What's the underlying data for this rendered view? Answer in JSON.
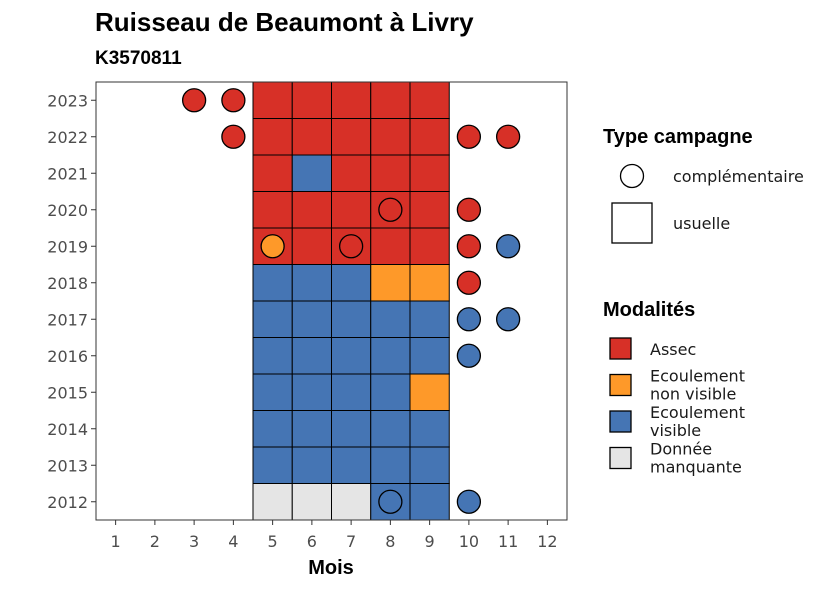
{
  "chart_data": {
    "type": "heatmap",
    "title": "Ruisseau de Beaumont à Livry",
    "subtitle": "K3570811",
    "xlabel": "Mois",
    "ylabel": "",
    "x_ticks": [
      "1",
      "2",
      "3",
      "4",
      "5",
      "6",
      "7",
      "8",
      "9",
      "10",
      "11",
      "12"
    ],
    "y_ticks": [
      "2012",
      "2013",
      "2014",
      "2015",
      "2016",
      "2017",
      "2018",
      "2019",
      "2020",
      "2021",
      "2022",
      "2023"
    ],
    "xlim": [
      0.5,
      12.5
    ],
    "ylim": [
      2011.5,
      2023.5
    ],
    "grid": false,
    "legend_placement": "right",
    "colors": {
      "Assec": "#d73027",
      "Ecoulement non visible": "#fe9929",
      "Ecoulement visible": "#4575b4",
      "Donnée manquante": "#e5e5e5"
    },
    "legend_type": {
      "title": "Type campagne",
      "items": [
        {
          "label": "complémentaire",
          "shape": "circle"
        },
        {
          "label": "usuelle",
          "shape": "square"
        }
      ]
    },
    "legend_mod": {
      "title": "Modalités",
      "items": [
        {
          "key": "Assec",
          "lines": [
            "Assec"
          ]
        },
        {
          "key": "Ecoulement non visible",
          "lines": [
            "Ecoulement",
            "non visible"
          ]
        },
        {
          "key": "Ecoulement visible",
          "lines": [
            "Ecoulement",
            "visible"
          ]
        },
        {
          "key": "Donnée manquante",
          "lines": [
            "Donnée",
            "manquante"
          ]
        }
      ]
    },
    "usuelle": [
      {
        "year": 2023,
        "months": [
          5,
          6,
          7,
          8,
          9
        ],
        "values": [
          "Assec",
          "Assec",
          "Assec",
          "Assec",
          "Assec"
        ]
      },
      {
        "year": 2022,
        "months": [
          5,
          6,
          7,
          8,
          9
        ],
        "values": [
          "Assec",
          "Assec",
          "Assec",
          "Assec",
          "Assec"
        ]
      },
      {
        "year": 2021,
        "months": [
          5,
          6,
          7,
          8,
          9
        ],
        "values": [
          "Assec",
          "Ecoulement visible",
          "Assec",
          "Assec",
          "Assec"
        ]
      },
      {
        "year": 2020,
        "months": [
          5,
          6,
          7,
          8,
          9
        ],
        "values": [
          "Assec",
          "Assec",
          "Assec",
          "Assec",
          "Assec"
        ]
      },
      {
        "year": 2019,
        "months": [
          5,
          6,
          7,
          8,
          9
        ],
        "values": [
          "Assec",
          "Assec",
          "Assec",
          "Assec",
          "Assec"
        ]
      },
      {
        "year": 2018,
        "months": [
          5,
          6,
          7,
          8,
          9
        ],
        "values": [
          "Ecoulement visible",
          "Ecoulement visible",
          "Ecoulement visible",
          "Ecoulement non visible",
          "Ecoulement non visible"
        ]
      },
      {
        "year": 2017,
        "months": [
          5,
          6,
          7,
          8,
          9
        ],
        "values": [
          "Ecoulement visible",
          "Ecoulement visible",
          "Ecoulement visible",
          "Ecoulement visible",
          "Ecoulement visible"
        ]
      },
      {
        "year": 2016,
        "months": [
          5,
          6,
          7,
          8,
          9
        ],
        "values": [
          "Ecoulement visible",
          "Ecoulement visible",
          "Ecoulement visible",
          "Ecoulement visible",
          "Ecoulement visible"
        ]
      },
      {
        "year": 2015,
        "months": [
          5,
          6,
          7,
          8,
          9
        ],
        "values": [
          "Ecoulement visible",
          "Ecoulement visible",
          "Ecoulement visible",
          "Ecoulement visible",
          "Ecoulement non visible"
        ]
      },
      {
        "year": 2014,
        "months": [
          5,
          6,
          7,
          8,
          9
        ],
        "values": [
          "Ecoulement visible",
          "Ecoulement visible",
          "Ecoulement visible",
          "Ecoulement visible",
          "Ecoulement visible"
        ]
      },
      {
        "year": 2013,
        "months": [
          5,
          6,
          7,
          8,
          9
        ],
        "values": [
          "Ecoulement visible",
          "Ecoulement visible",
          "Ecoulement visible",
          "Ecoulement visible",
          "Ecoulement visible"
        ]
      },
      {
        "year": 2012,
        "months": [
          5,
          6,
          7,
          8,
          9
        ],
        "values": [
          "Donnée manquante",
          "Donnée manquante",
          "Donnée manquante",
          "Ecoulement visible",
          "Ecoulement visible"
        ]
      }
    ],
    "complementaire": [
      {
        "year": 2023,
        "month": 3,
        "value": "Assec"
      },
      {
        "year": 2023,
        "month": 4,
        "value": "Assec"
      },
      {
        "year": 2022,
        "month": 4,
        "value": "Assec"
      },
      {
        "year": 2022,
        "month": 10,
        "value": "Assec"
      },
      {
        "year": 2022,
        "month": 11,
        "value": "Assec"
      },
      {
        "year": 2020,
        "month": 8,
        "value": "Assec"
      },
      {
        "year": 2020,
        "month": 10,
        "value": "Assec"
      },
      {
        "year": 2019,
        "month": 5,
        "value": "Ecoulement non visible"
      },
      {
        "year": 2019,
        "month": 7,
        "value": "Assec"
      },
      {
        "year": 2019,
        "month": 10,
        "value": "Assec"
      },
      {
        "year": 2019,
        "month": 11,
        "value": "Ecoulement visible"
      },
      {
        "year": 2018,
        "month": 10,
        "value": "Assec"
      },
      {
        "year": 2017,
        "month": 10,
        "value": "Ecoulement visible"
      },
      {
        "year": 2017,
        "month": 11,
        "value": "Ecoulement visible"
      },
      {
        "year": 2016,
        "month": 10,
        "value": "Ecoulement visible"
      },
      {
        "year": 2012,
        "month": 8,
        "value": "Ecoulement visible"
      },
      {
        "year": 2012,
        "month": 10,
        "value": "Ecoulement visible"
      }
    ]
  }
}
